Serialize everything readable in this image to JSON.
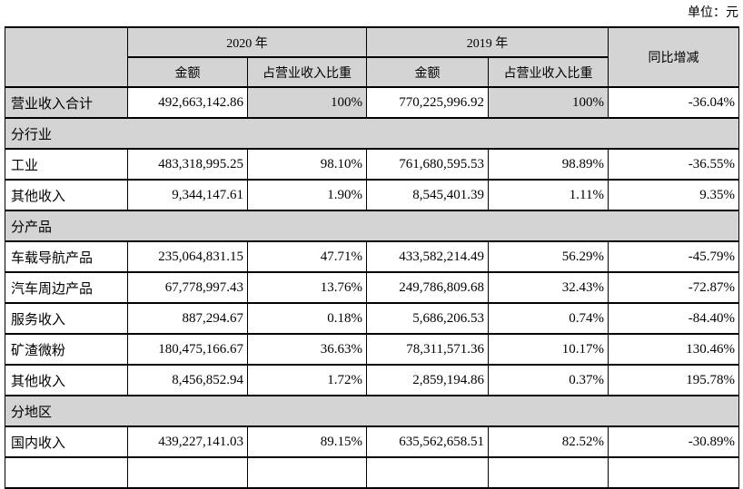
{
  "page": {
    "unit_label": "单位：元"
  },
  "colors": {
    "shaded_bg": "#d4d4d4",
    "border": "#000000"
  },
  "table": {
    "header": {
      "year_2020": "2020 年",
      "year_2019": "2019 年",
      "amount": "金额",
      "proportion": "占营业收入比重",
      "yoy": "同比增减"
    },
    "rows": [
      {
        "kind": "data",
        "shaded": true,
        "label": "营业收入合计",
        "cells": [
          "492,663,142.86",
          "100%",
          "770,225,996.92",
          "100%",
          "-36.04%"
        ]
      },
      {
        "kind": "section",
        "label": "分行业"
      },
      {
        "kind": "data",
        "shaded": false,
        "label": "工业",
        "cells": [
          "483,318,995.25",
          "98.10%",
          "761,680,595.53",
          "98.89%",
          "-36.55%"
        ]
      },
      {
        "kind": "data",
        "shaded": false,
        "label": "其他收入",
        "cells": [
          "9,344,147.61",
          "1.90%",
          "8,545,401.39",
          "1.11%",
          "9.35%"
        ]
      },
      {
        "kind": "section",
        "label": "分产品"
      },
      {
        "kind": "data",
        "shaded": false,
        "label": "车载导航产品",
        "cells": [
          "235,064,831.15",
          "47.71%",
          "433,582,214.49",
          "56.29%",
          "-45.79%"
        ]
      },
      {
        "kind": "data",
        "shaded": false,
        "label": "汽车周边产品",
        "cells": [
          "67,778,997.43",
          "13.76%",
          "249,786,809.68",
          "32.43%",
          "-72.87%"
        ]
      },
      {
        "kind": "data",
        "shaded": false,
        "label": "服务收入",
        "cells": [
          "887,294.67",
          "0.18%",
          "5,686,206.53",
          "0.74%",
          "-84.40%"
        ]
      },
      {
        "kind": "data",
        "shaded": false,
        "label": "矿渣微粉",
        "cells": [
          "180,475,166.67",
          "36.63%",
          "78,311,571.36",
          "10.17%",
          "130.46%"
        ]
      },
      {
        "kind": "data",
        "shaded": false,
        "label": "其他收入",
        "cells": [
          "8,456,852.94",
          "1.72%",
          "2,859,194.86",
          "0.37%",
          "195.78%"
        ]
      },
      {
        "kind": "section",
        "label": "分地区"
      },
      {
        "kind": "data",
        "shaded": false,
        "label": "国内收入",
        "cells": [
          "439,227,141.03",
          "89.15%",
          "635,562,658.51",
          "82.52%",
          "-30.89%"
        ]
      }
    ]
  }
}
